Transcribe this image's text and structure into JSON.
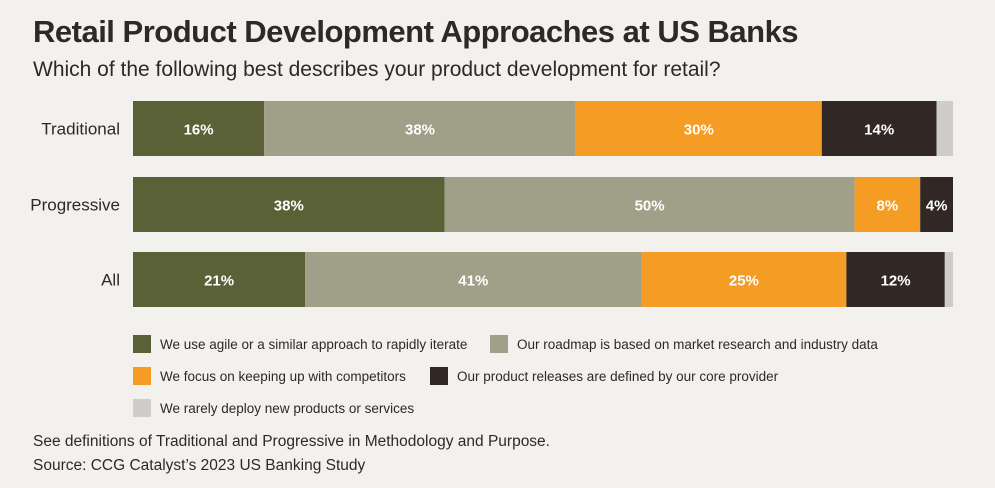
{
  "title": "Retail Product Development Approaches at US Banks",
  "subtitle": "Which of the following best describes your product development for retail?",
  "chart_data": {
    "type": "bar",
    "orientation": "horizontal",
    "stacked": true,
    "normalized": true,
    "categories": [
      "Traditional",
      "Progressive",
      "All"
    ],
    "series": [
      {
        "name": "We use agile or a similar approach to rapidly iterate",
        "color": "#5b6137",
        "values": [
          16,
          38,
          21
        ],
        "labels": [
          "16%",
          "38%",
          "21%"
        ]
      },
      {
        "name": "Our roadmap is based on market research and industry data",
        "color": "#a09f87",
        "values": [
          38,
          50,
          41
        ],
        "labels": [
          "38%",
          "50%",
          "41%"
        ]
      },
      {
        "name": "We focus on keeping up with competitors",
        "color": "#f59c25",
        "values": [
          30,
          8,
          25
        ],
        "labels": [
          "30%",
          "8%",
          "25%"
        ]
      },
      {
        "name": "Our product releases are defined by our core provider",
        "color": "#312826",
        "values": [
          14,
          4,
          12
        ],
        "labels": [
          "14%",
          "4%",
          "12%"
        ]
      },
      {
        "name": "We rarely deploy new products or services",
        "color": "#cfcdca",
        "values": [
          2,
          0,
          1
        ],
        "labels": [
          "",
          "",
          ""
        ]
      }
    ],
    "legend_position": "bottom",
    "grid": false
  },
  "footnotes": [
    "See definitions of Traditional and Progressive in Methodology and Purpose.",
    "Source: CCG Catalyst’s 2023 US Banking Study"
  ]
}
